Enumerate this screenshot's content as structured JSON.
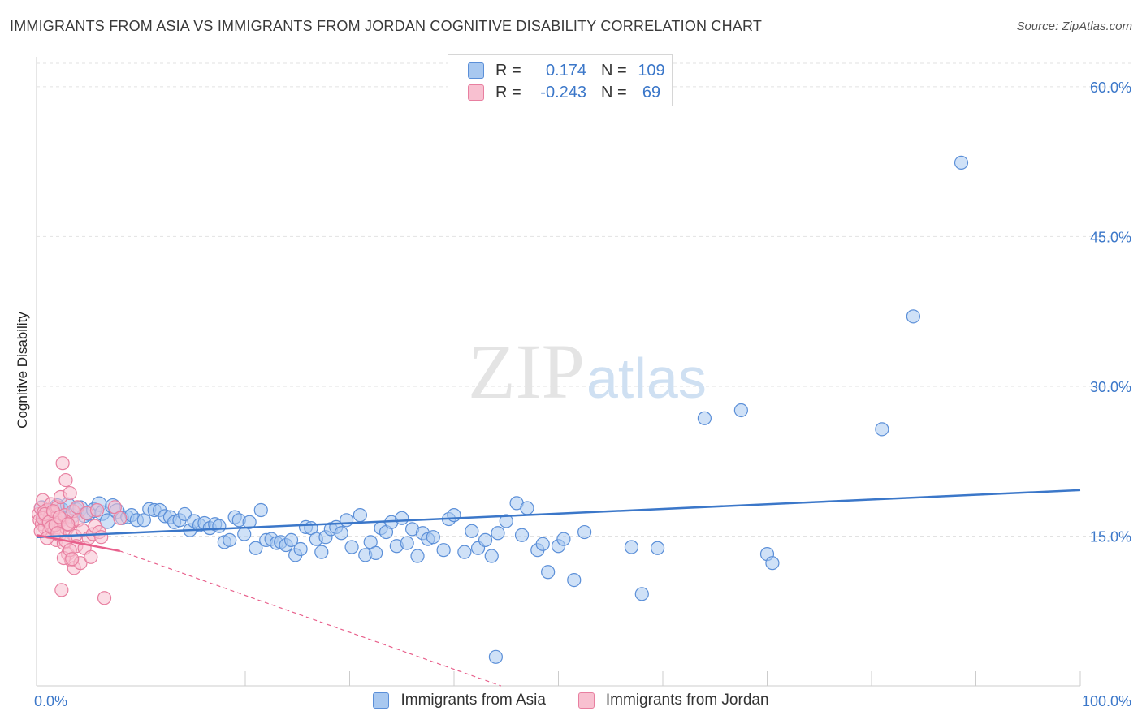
{
  "title": "IMMIGRANTS FROM ASIA VS IMMIGRANTS FROM JORDAN COGNITIVE DISABILITY CORRELATION CHART",
  "source": "Source: ZipAtlas.com",
  "watermark": {
    "zip": "ZIP",
    "atlas": "atlas"
  },
  "legend": {
    "rows": [
      {
        "r_label": "R =",
        "r_value": "0.174",
        "n_label": "N =",
        "n_value": "109",
        "color": "#a8c8f0",
        "border": "#5b8fd8"
      },
      {
        "r_label": "R =",
        "r_value": "-0.243",
        "n_label": "N =",
        "n_value": "69",
        "color": "#f8c0d0",
        "border": "#e87fa0"
      }
    ]
  },
  "chart_data": {
    "type": "scatter",
    "title": "IMMIGRANTS FROM ASIA VS IMMIGRANTS FROM JORDAN COGNITIVE DISABILITY CORRELATION CHART",
    "xlabel": "",
    "ylabel": "Cognitive Disability",
    "xlim": [
      0,
      100
    ],
    "ylim": [
      0,
      63
    ],
    "x_tick_labels": [
      "0.0%",
      "100.0%"
    ],
    "y_ticks": [
      15,
      30,
      45,
      60
    ],
    "y_tick_labels": [
      "15.0%",
      "30.0%",
      "45.0%",
      "60.0%"
    ],
    "grid": true,
    "legend_position": "top-center",
    "series": [
      {
        "name": "Immigrants from Asia",
        "color": "#a8c8f0",
        "stroke": "#5b8fd8",
        "trend": {
          "x": [
            0,
            100
          ],
          "y": [
            14.9,
            19.6
          ],
          "color": "#3b77c9"
        },
        "points": [
          [
            0.5,
            17.8
          ],
          [
            0.8,
            16.9
          ],
          [
            1.2,
            17.5
          ],
          [
            1.6,
            17.2
          ],
          [
            2.0,
            18.0
          ],
          [
            2.4,
            17.6
          ],
          [
            2.7,
            16.8
          ],
          [
            3.0,
            18.1
          ],
          [
            3.4,
            17.0
          ],
          [
            3.8,
            17.6
          ],
          [
            4.2,
            17.8
          ],
          [
            4.6,
            17.1
          ],
          [
            5.0,
            17.3
          ],
          [
            5.5,
            17.6
          ],
          [
            6.0,
            18.2
          ],
          [
            6.3,
            17.3
          ],
          [
            6.8,
            16.5
          ],
          [
            7.3,
            18.0
          ],
          [
            7.7,
            17.5
          ],
          [
            8.2,
            16.8
          ],
          [
            8.7,
            16.9
          ],
          [
            9.1,
            17.1
          ],
          [
            9.6,
            16.6
          ],
          [
            10.3,
            16.6
          ],
          [
            10.8,
            17.7
          ],
          [
            11.3,
            17.6
          ],
          [
            11.8,
            17.6
          ],
          [
            12.3,
            17.0
          ],
          [
            12.8,
            16.9
          ],
          [
            13.2,
            16.4
          ],
          [
            13.7,
            16.6
          ],
          [
            14.2,
            17.2
          ],
          [
            14.7,
            15.6
          ],
          [
            15.1,
            16.5
          ],
          [
            15.6,
            16.1
          ],
          [
            16.1,
            16.3
          ],
          [
            16.6,
            15.8
          ],
          [
            17.1,
            16.2
          ],
          [
            17.5,
            16.0
          ],
          [
            18.0,
            14.4
          ],
          [
            18.5,
            14.6
          ],
          [
            19.0,
            16.9
          ],
          [
            19.4,
            16.6
          ],
          [
            19.9,
            15.2
          ],
          [
            20.4,
            16.4
          ],
          [
            21.0,
            13.8
          ],
          [
            21.5,
            17.6
          ],
          [
            22.0,
            14.6
          ],
          [
            22.5,
            14.7
          ],
          [
            23.0,
            14.3
          ],
          [
            23.4,
            14.4
          ],
          [
            23.9,
            14.1
          ],
          [
            24.4,
            14.6
          ],
          [
            24.8,
            13.1
          ],
          [
            25.3,
            13.7
          ],
          [
            25.8,
            15.9
          ],
          [
            26.3,
            15.8
          ],
          [
            26.8,
            14.7
          ],
          [
            27.3,
            13.4
          ],
          [
            27.7,
            14.9
          ],
          [
            28.2,
            15.7
          ],
          [
            28.7,
            15.9
          ],
          [
            29.2,
            15.3
          ],
          [
            29.7,
            16.6
          ],
          [
            30.2,
            13.9
          ],
          [
            31.0,
            17.1
          ],
          [
            31.5,
            13.1
          ],
          [
            32.0,
            14.4
          ],
          [
            32.5,
            13.3
          ],
          [
            33.0,
            15.8
          ],
          [
            33.5,
            15.4
          ],
          [
            34.0,
            16.4
          ],
          [
            34.5,
            14.0
          ],
          [
            35.0,
            16.8
          ],
          [
            35.5,
            14.3
          ],
          [
            36.0,
            15.7
          ],
          [
            36.5,
            13.0
          ],
          [
            37.0,
            15.3
          ],
          [
            37.5,
            14.7
          ],
          [
            38.0,
            14.9
          ],
          [
            39.0,
            13.6
          ],
          [
            39.5,
            16.7
          ],
          [
            40.0,
            17.1
          ],
          [
            41.0,
            13.4
          ],
          [
            41.7,
            15.5
          ],
          [
            42.3,
            13.8
          ],
          [
            43.0,
            14.6
          ],
          [
            43.6,
            13.0
          ],
          [
            44.2,
            15.3
          ],
          [
            45.0,
            16.5
          ],
          [
            46.0,
            18.3
          ],
          [
            46.5,
            15.1
          ],
          [
            47.0,
            17.8
          ],
          [
            48.0,
            13.6
          ],
          [
            48.5,
            14.2
          ],
          [
            49.0,
            11.4
          ],
          [
            50.0,
            14.0
          ],
          [
            50.5,
            14.7
          ],
          [
            51.5,
            10.6
          ],
          [
            52.5,
            15.4
          ],
          [
            57.0,
            13.9
          ],
          [
            58.0,
            9.2
          ],
          [
            59.5,
            13.8
          ],
          [
            70.0,
            13.2
          ],
          [
            70.5,
            12.3
          ],
          [
            81.0,
            25.7
          ],
          [
            64.0,
            26.8
          ],
          [
            67.5,
            27.6
          ],
          [
            84.0,
            37.0
          ],
          [
            88.6,
            52.4
          ],
          [
            44.0,
            2.9
          ]
        ]
      },
      {
        "name": "Immigrants from Jordan",
        "color": "#f8c0d0",
        "stroke": "#e87fa0",
        "trend": {
          "x": [
            0,
            8.0
          ],
          "y": [
            15.1,
            13.5
          ],
          "extend_to": [
            44.5,
            0
          ],
          "color": "#e8608c"
        },
        "points": [
          [
            0.2,
            17.2
          ],
          [
            0.3,
            16.6
          ],
          [
            0.4,
            17.8
          ],
          [
            0.5,
            16.2
          ],
          [
            0.6,
            18.6
          ],
          [
            0.7,
            17.4
          ],
          [
            0.8,
            15.8
          ],
          [
            0.9,
            16.9
          ],
          [
            1.0,
            17.6
          ],
          [
            1.1,
            16.4
          ],
          [
            1.2,
            15.4
          ],
          [
            1.3,
            17.0
          ],
          [
            1.4,
            18.2
          ],
          [
            1.5,
            16.0
          ],
          [
            1.6,
            17.3
          ],
          [
            1.7,
            15.6
          ],
          [
            1.8,
            16.8
          ],
          [
            1.9,
            14.6
          ],
          [
            2.0,
            17.9
          ],
          [
            2.1,
            16.3
          ],
          [
            2.2,
            15.1
          ],
          [
            2.3,
            18.9
          ],
          [
            2.4,
            16.7
          ],
          [
            2.5,
            22.3
          ],
          [
            2.6,
            14.3
          ],
          [
            2.7,
            17.1
          ],
          [
            2.8,
            20.6
          ],
          [
            2.9,
            15.7
          ],
          [
            3.0,
            13.2
          ],
          [
            3.1,
            16.1
          ],
          [
            3.2,
            19.3
          ],
          [
            3.3,
            12.6
          ],
          [
            3.4,
            16.5
          ],
          [
            3.5,
            17.5
          ],
          [
            3.6,
            11.8
          ],
          [
            3.7,
            15.0
          ],
          [
            3.8,
            14.0
          ],
          [
            3.9,
            17.9
          ],
          [
            4.0,
            16.6
          ],
          [
            4.2,
            12.3
          ],
          [
            4.4,
            15.6
          ],
          [
            4.6,
            13.8
          ],
          [
            4.8,
            17.3
          ],
          [
            5.0,
            14.8
          ],
          [
            5.2,
            12.9
          ],
          [
            5.4,
            15.2
          ],
          [
            5.6,
            16.0
          ],
          [
            5.8,
            17.6
          ],
          [
            6.0,
            15.4
          ],
          [
            6.2,
            14.9
          ],
          [
            0.4,
            15.5
          ],
          [
            0.6,
            16.8
          ],
          [
            0.8,
            17.2
          ],
          [
            1.0,
            14.8
          ],
          [
            1.2,
            16.4
          ],
          [
            1.4,
            15.9
          ],
          [
            1.6,
            17.5
          ],
          [
            1.8,
            16.1
          ],
          [
            2.0,
            15.3
          ],
          [
            2.2,
            16.9
          ],
          [
            2.4,
            9.6
          ],
          [
            2.6,
            12.8
          ],
          [
            2.8,
            14.5
          ],
          [
            3.0,
            16.2
          ],
          [
            3.2,
            13.6
          ],
          [
            3.4,
            12.7
          ],
          [
            7.5,
            17.9
          ],
          [
            8.0,
            16.8
          ],
          [
            6.5,
            8.8
          ]
        ]
      }
    ]
  },
  "bottom_legend": [
    "Immigrants from Asia",
    "Immigrants from Jordan"
  ]
}
